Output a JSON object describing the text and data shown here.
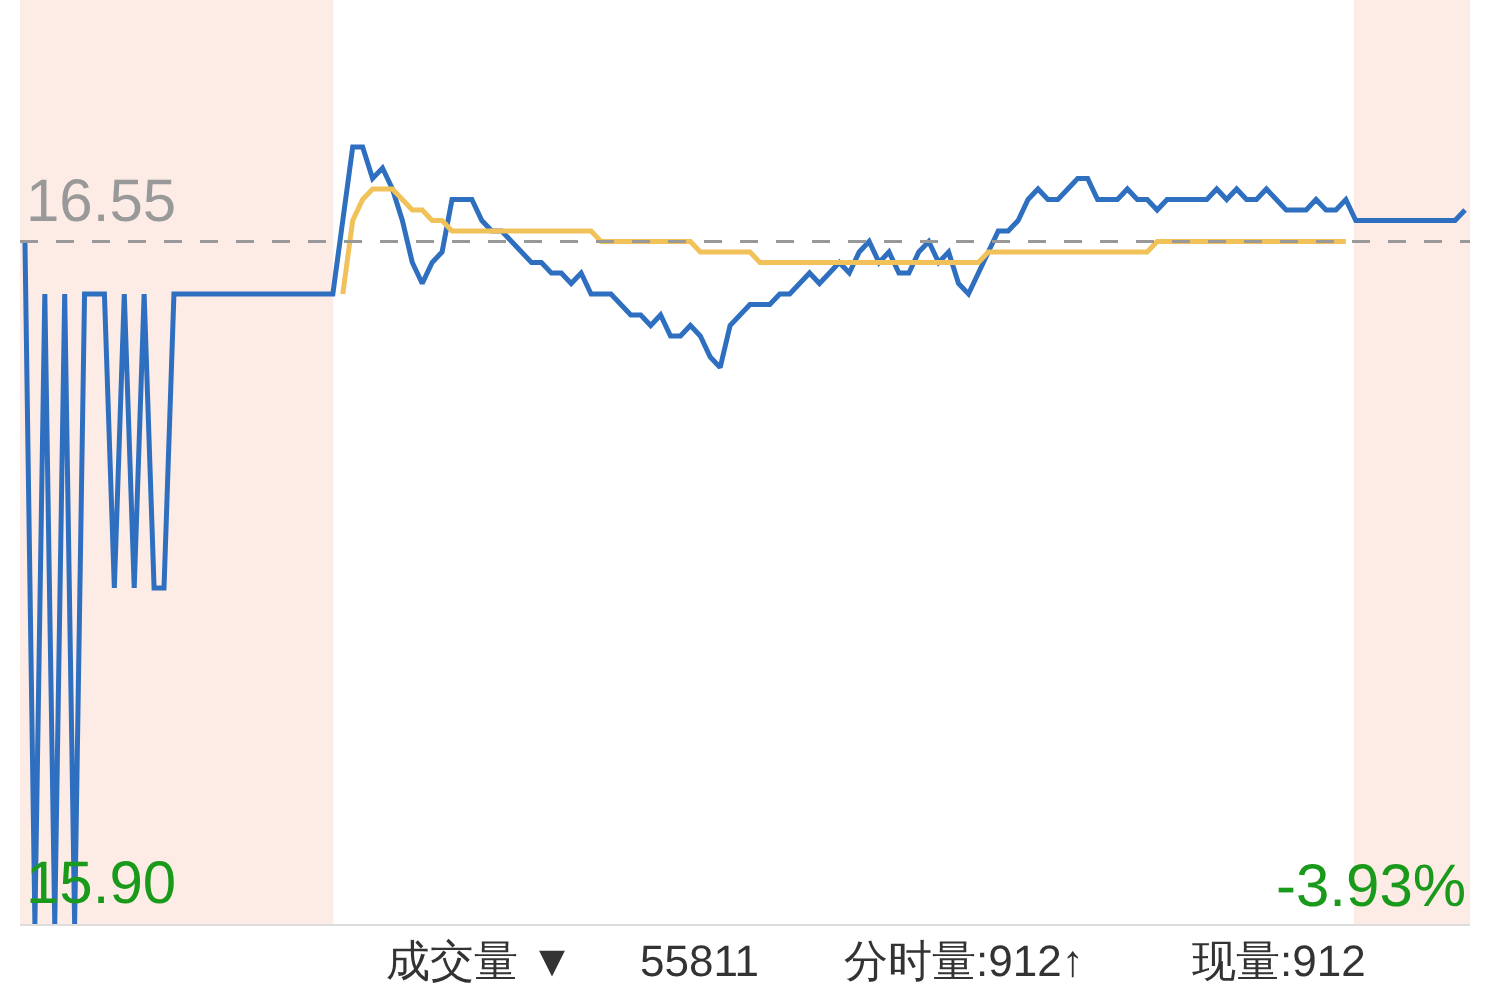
{
  "chart_data": {
    "type": "line",
    "categories": [
      null,
      null,
      null,
      null,
      null,
      null,
      null,
      null,
      null,
      null,
      null,
      null,
      null,
      null,
      null,
      null,
      null,
      null,
      null,
      null,
      null,
      null,
      null,
      null,
      null,
      null,
      null,
      null,
      null,
      null,
      null,
      null,
      null,
      null,
      null,
      null,
      null,
      null,
      null,
      null,
      null,
      null,
      null,
      null,
      null,
      null,
      null,
      null,
      null,
      null,
      null,
      null,
      null,
      null,
      null,
      null,
      null,
      null,
      null,
      null,
      null,
      null,
      null,
      null,
      null,
      null,
      null,
      null,
      null,
      null,
      null,
      null,
      null,
      null,
      null,
      null,
      null,
      null,
      null,
      null,
      null,
      null,
      null,
      null,
      null,
      null,
      null,
      null,
      null,
      null,
      null,
      null,
      null,
      null,
      null,
      null,
      null,
      null,
      null,
      null,
      null,
      null,
      null,
      null,
      null,
      null,
      null,
      null,
      null,
      null,
      null,
      null,
      null,
      null,
      null,
      null,
      null,
      null,
      null,
      null,
      null,
      null,
      null,
      null,
      null,
      null,
      null,
      null,
      null,
      null,
      null,
      null,
      null,
      null,
      null,
      null,
      null,
      null,
      null,
      null,
      null,
      null,
      null,
      null,
      null,
      null
    ],
    "series": [
      {
        "color": "#2f6fc0",
        "values": [
          16.55,
          15.9,
          16.5,
          15.9,
          16.5,
          15.9,
          16.5,
          16.5,
          16.5,
          16.22,
          16.5,
          16.22,
          16.5,
          16.22,
          16.22,
          16.5,
          16.5,
          16.5,
          16.5,
          16.5,
          16.5,
          16.5,
          16.5,
          16.5,
          16.5,
          16.5,
          16.5,
          16.5,
          16.5,
          16.5,
          16.5,
          16.5,
          16.57,
          16.64,
          16.64,
          16.61,
          16.62,
          16.6,
          16.57,
          16.53,
          16.51,
          16.53,
          16.54,
          16.59,
          16.59,
          16.59,
          16.57,
          16.56,
          16.56,
          16.55,
          16.54,
          16.53,
          16.53,
          16.52,
          16.52,
          16.51,
          16.52,
          16.5,
          16.5,
          16.5,
          16.49,
          16.48,
          16.48,
          16.47,
          16.48,
          16.46,
          16.46,
          16.47,
          16.46,
          16.44,
          16.43,
          16.47,
          16.48,
          16.49,
          16.49,
          16.49,
          16.5,
          16.5,
          16.51,
          16.52,
          16.51,
          16.52,
          16.53,
          16.52,
          16.54,
          16.55,
          16.53,
          16.54,
          16.52,
          16.52,
          16.54,
          16.55,
          16.53,
          16.54,
          16.51,
          16.5,
          16.52,
          16.54,
          16.56,
          16.56,
          16.57,
          16.59,
          16.6,
          16.59,
          16.59,
          16.6,
          16.61,
          16.61,
          16.59,
          16.59,
          16.59,
          16.6,
          16.59,
          16.59,
          16.58,
          16.59,
          16.59,
          16.59,
          16.59,
          16.59,
          16.6,
          16.59,
          16.6,
          16.59,
          16.59,
          16.6,
          16.59,
          16.58,
          16.58,
          16.58,
          16.59,
          16.58,
          16.58,
          16.59,
          16.57,
          16.57,
          16.57,
          16.57,
          16.57,
          16.57,
          16.57,
          16.57,
          16.57,
          16.57,
          16.57,
          16.58
        ]
      },
      {
        "color": "#f2c25a",
        "values": [
          null,
          null,
          null,
          null,
          null,
          null,
          null,
          null,
          null,
          null,
          null,
          null,
          null,
          null,
          null,
          null,
          null,
          null,
          null,
          null,
          null,
          null,
          null,
          null,
          null,
          null,
          null,
          null,
          null,
          null,
          null,
          null,
          16.5,
          16.57,
          16.59,
          16.6,
          16.6,
          16.6,
          16.59,
          16.58,
          16.58,
          16.57,
          16.57,
          16.56,
          16.56,
          16.56,
          16.56,
          16.56,
          16.56,
          16.56,
          16.56,
          16.56,
          16.56,
          16.56,
          16.56,
          16.56,
          16.56,
          16.56,
          16.55,
          16.55,
          16.55,
          16.55,
          16.55,
          16.55,
          16.55,
          16.55,
          16.55,
          16.55,
          16.54,
          16.54,
          16.54,
          16.54,
          16.54,
          16.54,
          16.53,
          16.53,
          16.53,
          16.53,
          16.53,
          16.53,
          16.53,
          16.53,
          16.53,
          16.53,
          16.53,
          16.53,
          16.53,
          16.53,
          16.53,
          16.53,
          16.53,
          16.53,
          16.53,
          16.53,
          16.53,
          16.53,
          16.53,
          16.54,
          16.54,
          16.54,
          16.54,
          16.54,
          16.54,
          16.54,
          16.54,
          16.54,
          16.54,
          16.54,
          16.54,
          16.54,
          16.54,
          16.54,
          16.54,
          16.54,
          16.55,
          16.55,
          16.55,
          16.55,
          16.55,
          16.55,
          16.55,
          16.55,
          16.55,
          16.55,
          16.55,
          16.55,
          16.55,
          16.55,
          16.55,
          16.55,
          16.55,
          16.55,
          16.55,
          16.55,
          null,
          null,
          null,
          null,
          null,
          null,
          null,
          null,
          null,
          null,
          null,
          null
        ]
      }
    ],
    "ylim": [
      15.9,
      16.78
    ],
    "yticks": [
      {
        "value": 15.9,
        "label": "15.90"
      },
      {
        "value": 16.55,
        "label": "16.55"
      }
    ],
    "ref_lines": [
      {
        "axis": "y",
        "value": 16.55,
        "color": "#999999",
        "line_style": "dashed"
      }
    ],
    "annotations": [
      "-3.93%",
      "成交量 ▼",
      "55811",
      "分时量:912↑",
      "现量:912"
    ],
    "grid": false,
    "marker": "none",
    "line_style": "solid"
  }
}
